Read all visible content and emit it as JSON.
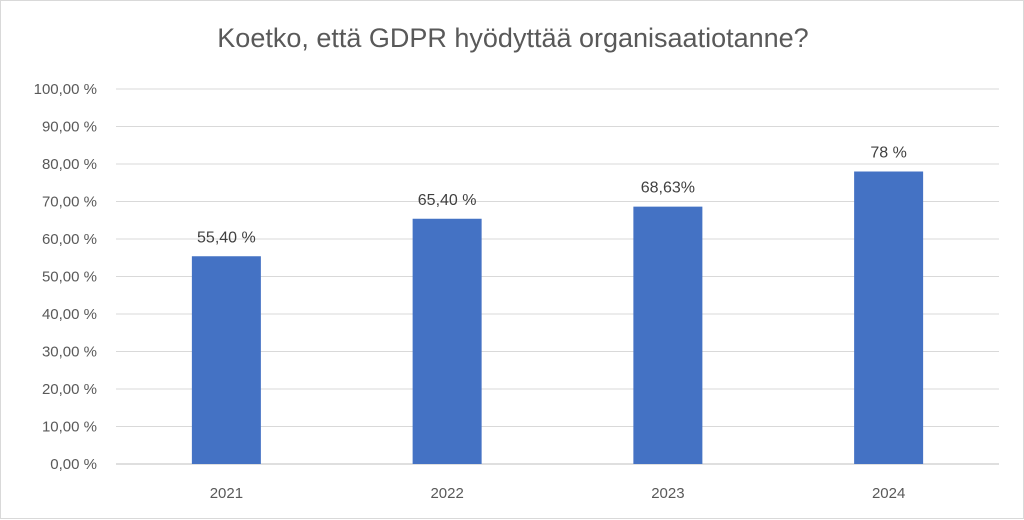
{
  "chart_data": {
    "type": "bar",
    "title": "Koetko, että GDPR hyödyttää organisaatiotanne?",
    "categories": [
      "2021",
      "2022",
      "2023",
      "2024"
    ],
    "values": [
      55.4,
      65.4,
      68.63,
      78
    ],
    "data_labels": [
      "55,40 %",
      "65,40 %",
      "68,63%",
      "78 %"
    ],
    "ylim": [
      0,
      100
    ],
    "yticks": [
      0,
      10,
      20,
      30,
      40,
      50,
      60,
      70,
      80,
      90,
      100
    ],
    "ytick_labels": [
      "0,00 %",
      "10,00 %",
      "20,00 %",
      "30,00 %",
      "40,00 %",
      "50,00 %",
      "60,00 %",
      "70,00 %",
      "80,00 %",
      "90,00 %",
      "100,00 %"
    ],
    "grid": true,
    "bar_color": "#4472C4",
    "grid_color": "#d9d9d9",
    "text_color": "#595959",
    "legend": "none"
  }
}
